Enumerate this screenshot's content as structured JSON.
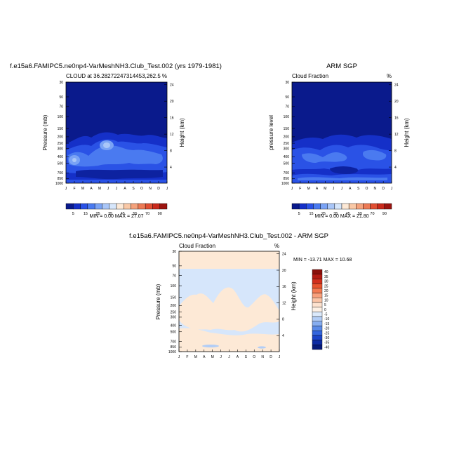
{
  "months": [
    "J",
    "F",
    "M",
    "A",
    "M",
    "J",
    "J",
    "A",
    "S",
    "O",
    "N",
    "D",
    "J"
  ],
  "pressure_ticks": [
    "30",
    "50",
    "70",
    "100",
    "150",
    "200",
    "250",
    "300",
    "400",
    "500",
    "700",
    "850",
    "1000"
  ],
  "height_ticks": [
    "24",
    "20",
    "16",
    "12",
    "8",
    "4"
  ],
  "bottom_height_ticks": [
    "24",
    "20",
    "16",
    "12",
    "8",
    "4"
  ],
  "panels": {
    "model": {
      "title": "f.e15a6.FAMIPC5.ne0np4-VarMeshNH3.Club_Test.002 (yrs 1979-1981)",
      "left_label": "CLOUD at 36.28272247314453,262.5",
      "right_label": "%",
      "ylabel": "Pressure (mb)",
      "y2label": "Height (km)",
      "minmax": "MIN =   0.00  MAX =  27.07"
    },
    "obs": {
      "title": "ARM SGP",
      "left_label": "Cloud Fraction",
      "right_label": "%",
      "ylabel": "pressure level",
      "y2label": "Height (km)",
      "minmax": "MIN =   0.00  MAX =  21.80"
    },
    "diff": {
      "title": "f.e15a6.FAMIPC5.ne0np4-VarMeshNH3.Club_Test.002 - ARM SGP",
      "left_label": "Cloud Fraction",
      "right_label": "%",
      "ylabel": "Pressure (mb)",
      "y2label": "Height (km)",
      "minmax": "MIN = -13.71  MAX =  10.68"
    }
  },
  "colorbar_top": {
    "labels": [
      "5",
      "15",
      "25",
      "35",
      "45",
      "55",
      "70",
      "90"
    ],
    "colors": [
      "#0a1a8c",
      "#1530c8",
      "#2a52e6",
      "#4a7af0",
      "#7aa3f5",
      "#a9c6f8",
      "#d6e6fb",
      "#fde9d6",
      "#f9c8a6",
      "#f4a27c",
      "#ec7a55",
      "#e04f33",
      "#c92a1c",
      "#9c1410"
    ]
  },
  "colorbar_diff": {
    "labels": [
      "40",
      "35",
      "30",
      "25",
      "20",
      "15",
      "10",
      "5",
      "0",
      "-5",
      "-10",
      "-15",
      "-20",
      "-25",
      "-30",
      "-35",
      "-40"
    ],
    "colors": [
      "#8a0f0a",
      "#b31a12",
      "#d22f1d",
      "#e8542f",
      "#f37a52",
      "#f8a07c",
      "#fbc4a6",
      "#fde2cf",
      "#fdf0e4",
      "#dbe9fb",
      "#b2cdf6",
      "#86adf0",
      "#5a8ae8",
      "#3466de",
      "#1b44c9",
      "#0d2ba3",
      "#061a7a"
    ]
  },
  "chart_data": [
    {
      "type": "heatmap",
      "title": "f.e15a6.FAMIPC5.ne0np4-VarMeshNH3.Club_Test.002 (yrs 1979-1981)",
      "subtitle": "CLOUD at 36.28272247314453,262.5",
      "xlabel": "",
      "ylabel": "Pressure (mb)",
      "y2label": "Height (km)",
      "x": [
        "J",
        "F",
        "M",
        "A",
        "M",
        "J",
        "J",
        "A",
        "S",
        "O",
        "N",
        "D",
        "J"
      ],
      "y_pressure": [
        30,
        50,
        70,
        100,
        150,
        200,
        250,
        300,
        400,
        500,
        700,
        850,
        1000
      ],
      "units": "%",
      "min": 0.0,
      "max": 27.07
    },
    {
      "type": "heatmap",
      "title": "ARM SGP",
      "subtitle": "Cloud Fraction",
      "ylabel": "pressure level",
      "y2label": "Height (km)",
      "x": [
        "J",
        "F",
        "M",
        "A",
        "M",
        "J",
        "J",
        "A",
        "S",
        "O",
        "N",
        "D",
        "J"
      ],
      "y_pressure": [
        30,
        50,
        70,
        100,
        150,
        200,
        250,
        300,
        400,
        500,
        700,
        850,
        1000
      ],
      "units": "%",
      "min": 0.0,
      "max": 21.8
    },
    {
      "type": "heatmap",
      "title": "f.e15a6.FAMIPC5.ne0np4-VarMeshNH3.Club_Test.002 - ARM SGP",
      "subtitle": "Cloud Fraction",
      "ylabel": "Pressure (mb)",
      "y2label": "Height (km)",
      "x": [
        "J",
        "F",
        "M",
        "A",
        "M",
        "J",
        "J",
        "A",
        "S",
        "O",
        "N",
        "D",
        "J"
      ],
      "y_pressure": [
        30,
        50,
        70,
        100,
        150,
        200,
        250,
        300,
        400,
        500,
        700,
        850,
        1000
      ],
      "units": "%",
      "min": -13.71,
      "max": 10.68
    }
  ]
}
